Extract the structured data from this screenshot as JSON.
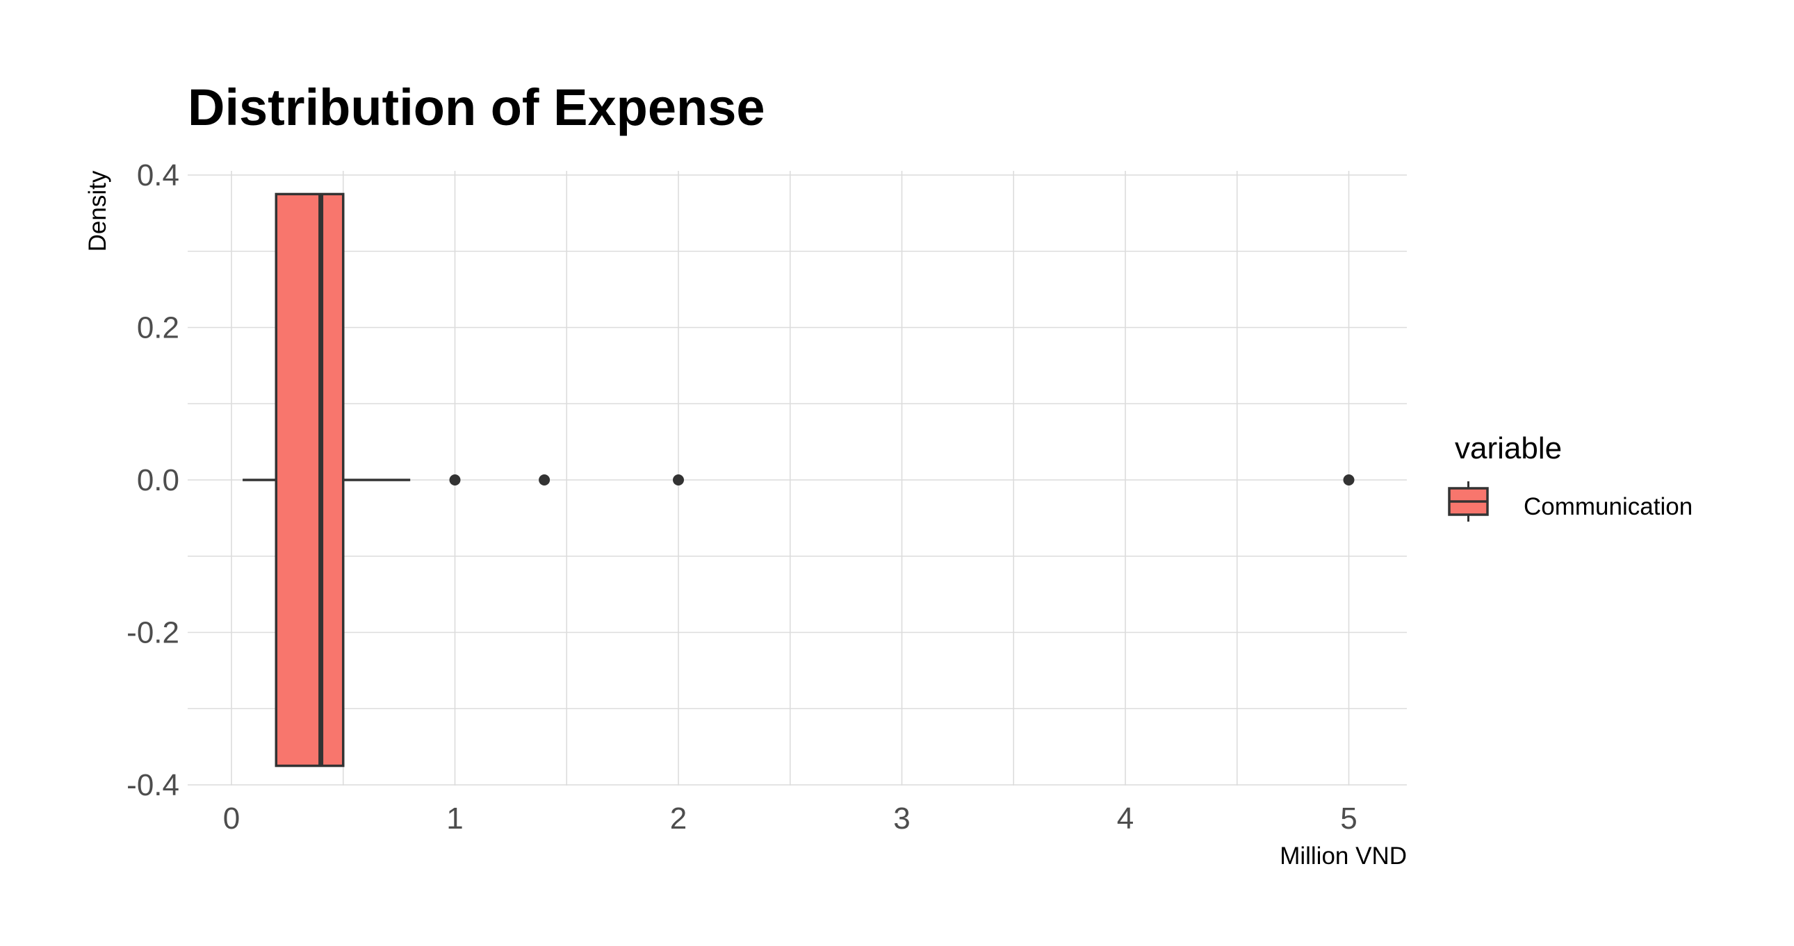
{
  "chart_data": {
    "type": "boxplot",
    "title": "Distribution of Expense",
    "xlabel": "Million VND",
    "ylabel": "Density",
    "xlim": [
      -0.2,
      5.25
    ],
    "ylim": [
      -0.4,
      0.4
    ],
    "x_ticks": [
      0,
      1,
      2,
      3,
      4,
      5
    ],
    "y_ticks": [
      -0.4,
      -0.2,
      0.0,
      0.2,
      0.4
    ],
    "x_tick_labels": [
      "0",
      "1",
      "2",
      "3",
      "4",
      "5"
    ],
    "y_tick_labels": [
      "-0.4",
      "-0.2",
      "0.0",
      "0.2",
      "0.4"
    ],
    "grid": true,
    "legend": {
      "title": "variable",
      "position": "right"
    },
    "series": [
      {
        "name": "Communication",
        "color": "#F8766D",
        "whisker_low": 0.05,
        "q1": 0.2,
        "median": 0.4,
        "q3": 0.5,
        "whisker_high": 0.8,
        "box_half_height": 0.375,
        "outliers": [
          1.0,
          1.4,
          2.0,
          5.0
        ]
      }
    ]
  }
}
